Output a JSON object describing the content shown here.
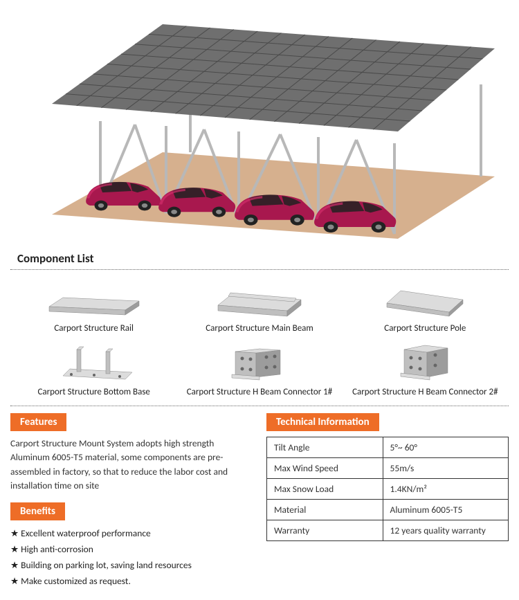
{
  "hero": {
    "car_color": "#a8184e",
    "car_highlight": "#d12d6b",
    "floor_color": "#d6b08e",
    "panel_color": "#6f6f6f",
    "panel_grid": "#4a4a4a",
    "beam_color": "#b8b8b8"
  },
  "componentList": {
    "heading": "Component List",
    "items": [
      {
        "label": "Carport Structure Rail"
      },
      {
        "label": "Carport Structure Main Beam"
      },
      {
        "label": "Carport Structure Pole"
      },
      {
        "label": "Carport Structure Bottom Base"
      },
      {
        "label": "Carport Structure H Beam Connector 1#"
      },
      {
        "label": "Carport Structure H Beam Connector 2#"
      }
    ],
    "metal_light": "#dcdcdc",
    "metal_mid": "#bfbfbf",
    "metal_dark": "#9c9c9c"
  },
  "features": {
    "heading": "Features",
    "text": "Carport Structure Mount System adopts high strength Aluminum 6005-T5 material, some components are pre-assembled in factory, so that to reduce the labor cost and installation time on site"
  },
  "benefits": {
    "heading": "Benefits",
    "items": [
      "Excellent waterproof performance",
      "High anti-corrosion",
      "Building on parking lot, saving land resources",
      "Make customized as request."
    ]
  },
  "techInfo": {
    "heading": "Technical Information",
    "rows": [
      {
        "k": "Tilt Angle",
        "v": "5°~ 60°"
      },
      {
        "k": "Max Wind Speed",
        "v": "55m/s"
      },
      {
        "k": "Max Snow Load",
        "v": "1.4KN/m²"
      },
      {
        "k": "Material",
        "v": "Aluminum 6005-T5"
      },
      {
        "k": "Warranty",
        "v": "12 years quality warranty"
      }
    ]
  },
  "style": {
    "accent": "#ee6d27",
    "text_color": "#333333",
    "border_color": "#333333",
    "dot_color": "#666666"
  }
}
